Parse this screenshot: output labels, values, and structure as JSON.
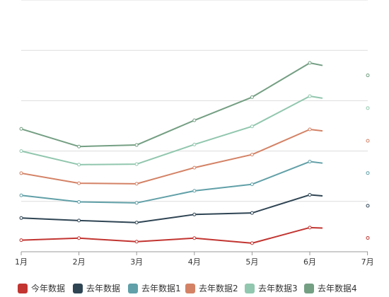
{
  "colors": {
    "grid": "#dddddd",
    "axis": "#999999",
    "background": "#ffffff"
  },
  "chart_data": {
    "type": "line",
    "categories": [
      "1月",
      "2月",
      "3月",
      "4月",
      "5月",
      "6月",
      "7月"
    ],
    "ylim": [
      0,
      500
    ],
    "grid": true,
    "legend_position": "bottom",
    "series": [
      {
        "name": "今年数据",
        "color": "#c23531",
        "values": [
          23,
          27,
          20,
          27,
          17,
          48,
          47
        ]
      },
      {
        "name": "去年数据",
        "color": "#2f4554",
        "values": [
          67,
          62,
          58,
          74,
          77,
          113,
          111
        ]
      },
      {
        "name": "去年数据1",
        "color": "#61a0a8",
        "values": [
          112,
          99,
          97,
          121,
          134,
          179,
          176
        ]
      },
      {
        "name": "去年数据2",
        "color": "#d48265",
        "values": [
          156,
          136,
          135,
          167,
          193,
          243,
          240
        ]
      },
      {
        "name": "去年数据3",
        "color": "#91c7ae",
        "values": [
          200,
          173,
          174,
          213,
          249,
          309,
          305
        ]
      },
      {
        "name": "去年数据4",
        "color": "#749f83",
        "values": [
          244,
          209,
          212,
          261,
          307,
          375,
          370
        ]
      }
    ]
  }
}
